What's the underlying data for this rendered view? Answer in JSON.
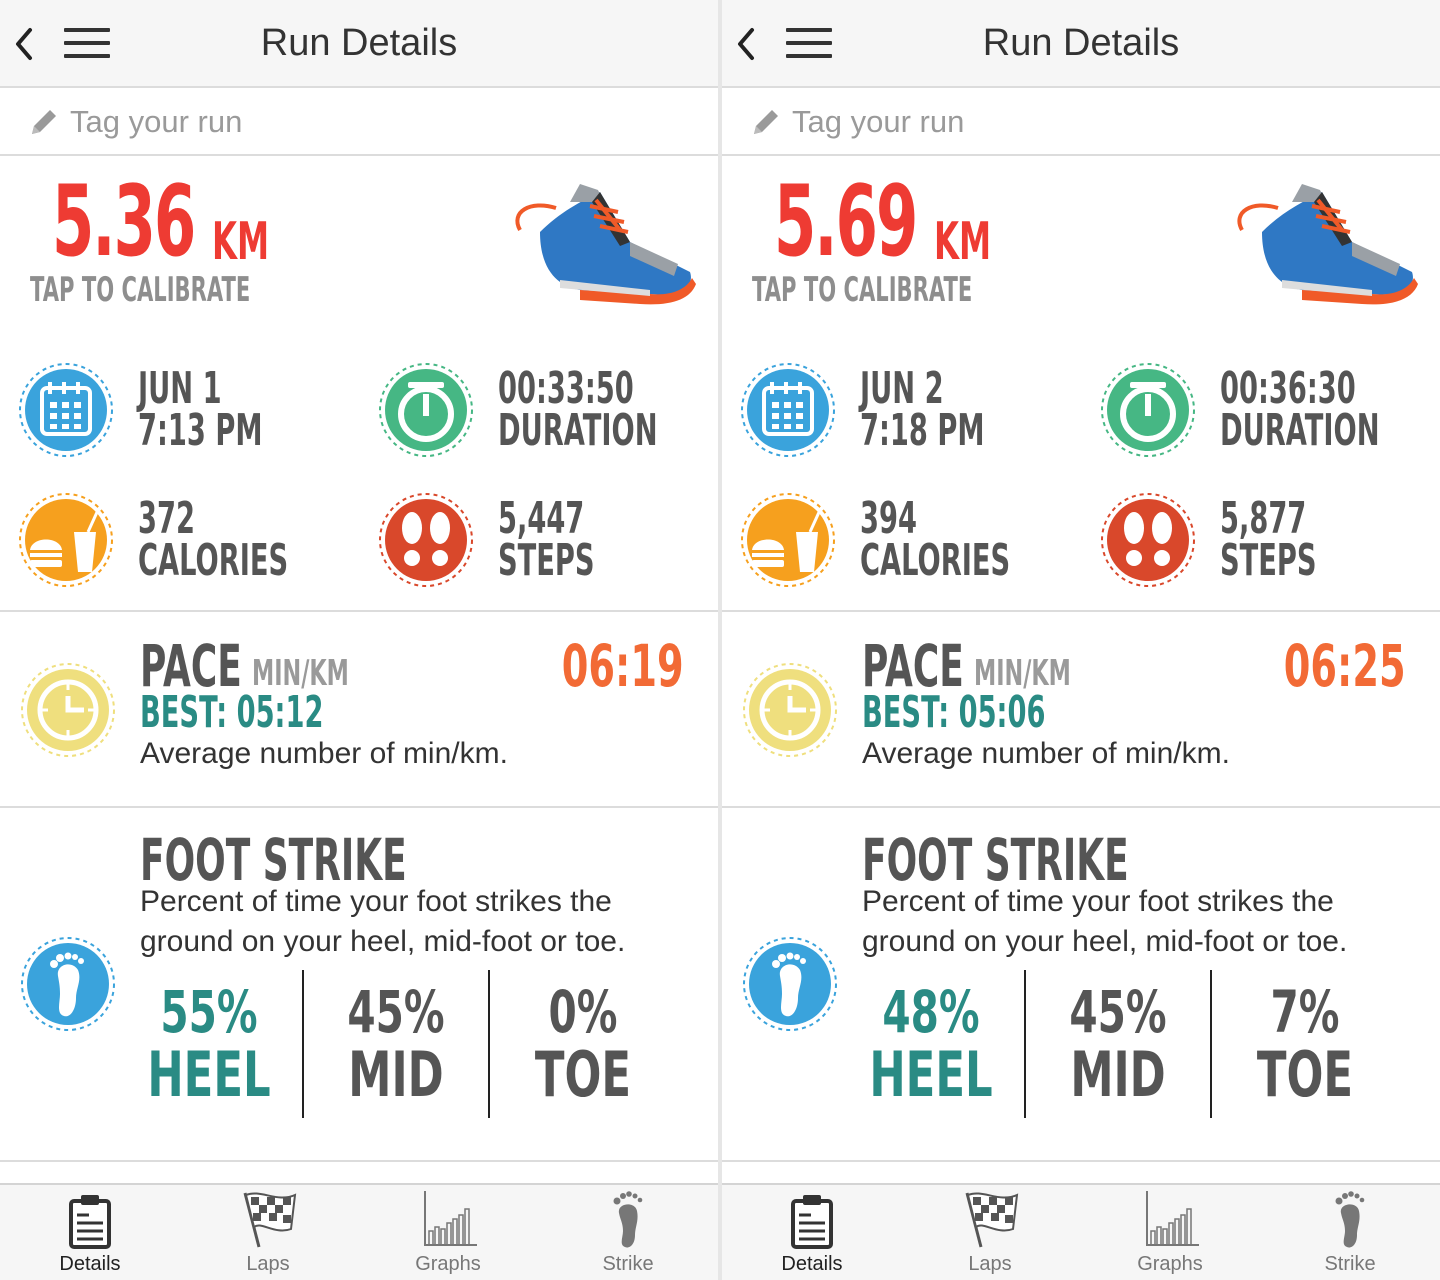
{
  "screens": [
    {
      "app_title": "Run Details",
      "tag_placeholder": "Tag your run",
      "distance": {
        "value": "5.36",
        "unit": "KM",
        "calibrate_label": "TAP TO CALIBRATE"
      },
      "stats": {
        "date_line1": "JUN 1",
        "date_line2": "7:13 PM",
        "duration_line1": "00:33:50",
        "duration_line2": "DURATION",
        "calories_line1": "372",
        "calories_line2": "CALORIES",
        "steps_line1": "5,447",
        "steps_line2": "STEPS"
      },
      "pace": {
        "title": "PACE",
        "unit": "MIN/KM",
        "value": "06:19",
        "best": "BEST: 05:12",
        "description": "Average number of min/km."
      },
      "foot_strike": {
        "title": "FOOT STRIKE",
        "description": "Percent of time your foot strikes the ground on your heel, mid-foot or toe.",
        "heel": {
          "percent": "55%",
          "label": "HEEL"
        },
        "mid": {
          "percent": "45%",
          "label": "MID"
        },
        "toe": {
          "percent": "0%",
          "label": "TOE"
        }
      },
      "nav": {
        "details": "Details",
        "laps": "Laps",
        "graphs": "Graphs",
        "strike": "Strike"
      }
    },
    {
      "app_title": "Run Details",
      "tag_placeholder": "Tag your run",
      "distance": {
        "value": "5.69",
        "unit": "KM",
        "calibrate_label": "TAP TO CALIBRATE"
      },
      "stats": {
        "date_line1": "JUN 2",
        "date_line2": "7:18 PM",
        "duration_line1": "00:36:30",
        "duration_line2": "DURATION",
        "calories_line1": "394",
        "calories_line2": "CALORIES",
        "steps_line1": "5,877",
        "steps_line2": "STEPS"
      },
      "pace": {
        "title": "PACE",
        "unit": "MIN/KM",
        "value": "06:25",
        "best": "BEST: 05:06",
        "description": "Average number of min/km."
      },
      "foot_strike": {
        "title": "FOOT STRIKE",
        "description": "Percent of time your foot strikes the ground on your heel, mid-foot or toe.",
        "heel": {
          "percent": "48%",
          "label": "HEEL"
        },
        "mid": {
          "percent": "45%",
          "label": "MID"
        },
        "toe": {
          "percent": "7%",
          "label": "TOE"
        }
      },
      "nav": {
        "details": "Details",
        "laps": "Laps",
        "graphs": "Graphs",
        "strike": "Strike"
      }
    }
  ],
  "colors": {
    "distance_red": "#ee3b33",
    "best_teal": "#2a8b84",
    "pace_orange": "#f26a35",
    "calendar_blue": "#3aa3dc",
    "duration_green": "#46b784",
    "calories_orange": "#f6a01e",
    "steps_red": "#d9482b",
    "pace_yellow": "#efdf7e",
    "footstrike_blue": "#3aa3dc"
  },
  "icons": [
    "back-icon",
    "menu-icon",
    "pencil-icon",
    "shoe-image",
    "calendar-icon",
    "stopwatch-icon",
    "food-icon",
    "footprints-icon",
    "clock-icon",
    "footprint-icon",
    "clipboard-icon",
    "checkered-flag-icon",
    "bar-graph-icon",
    "foot-icon"
  ]
}
